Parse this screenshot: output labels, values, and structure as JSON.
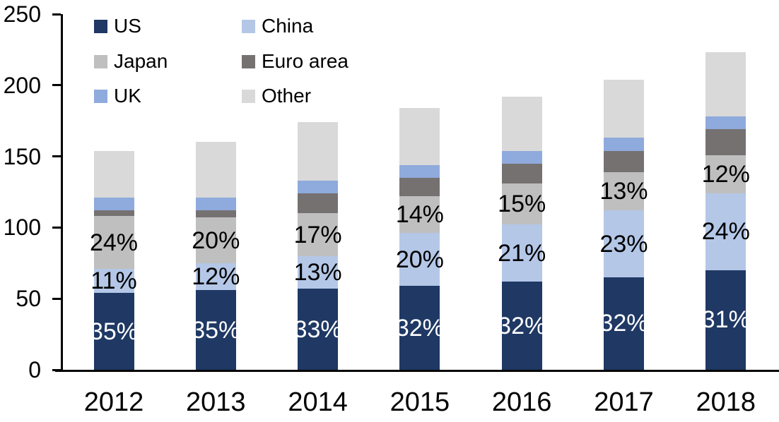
{
  "chart_data": {
    "type": "bar",
    "stacked": true,
    "title": "",
    "categories": [
      "2012",
      "2013",
      "2014",
      "2015",
      "2016",
      "2017",
      "2018"
    ],
    "series": [
      {
        "name": "US",
        "color": "#1F3864",
        "values": [
          54,
          56,
          57,
          59,
          62,
          65,
          70
        ],
        "labels": [
          "35%",
          "35%",
          "33%",
          "32%",
          "32%",
          "32%",
          "31%"
        ],
        "label_color": "#ffffff"
      },
      {
        "name": "China",
        "color": "#B4C7E7",
        "values": [
          17,
          19,
          23,
          37,
          40,
          47,
          54
        ],
        "labels": [
          "11%",
          "12%",
          "13%",
          "20%",
          "21%",
          "23%",
          "24%"
        ],
        "label_color": "#000000"
      },
      {
        "name": "Japan",
        "color": "#BFBFBF",
        "values": [
          37,
          32,
          30,
          26,
          29,
          27,
          27
        ],
        "labels": [
          "24%",
          "20%",
          "17%",
          "14%",
          "15%",
          "13%",
          "12%"
        ],
        "label_color": "#000000"
      },
      {
        "name": "Euro area",
        "color": "#767171",
        "values": [
          4,
          5,
          14,
          13,
          14,
          15,
          18
        ]
      },
      {
        "name": "UK",
        "color": "#8FAADC",
        "values": [
          9,
          9,
          9,
          9,
          9,
          9,
          9
        ]
      },
      {
        "name": "Other",
        "color": "#D9D9D9",
        "values": [
          33,
          39,
          41,
          40,
          38,
          41,
          45
        ]
      }
    ],
    "totals": [
      154,
      160,
      174,
      184,
      192,
      204,
      223
    ],
    "y_axis": {
      "min": 0,
      "max": 250,
      "tick_interval": 50,
      "tick_labels": [
        "0",
        "50",
        "100",
        "150",
        "200",
        "250"
      ]
    },
    "xlabel": "",
    "ylabel": "",
    "gridlines": false,
    "legend": {
      "position": "top-left",
      "columns": 2,
      "order": [
        "US",
        "China",
        "Japan",
        "Euro area",
        "UK",
        "Other"
      ]
    }
  }
}
